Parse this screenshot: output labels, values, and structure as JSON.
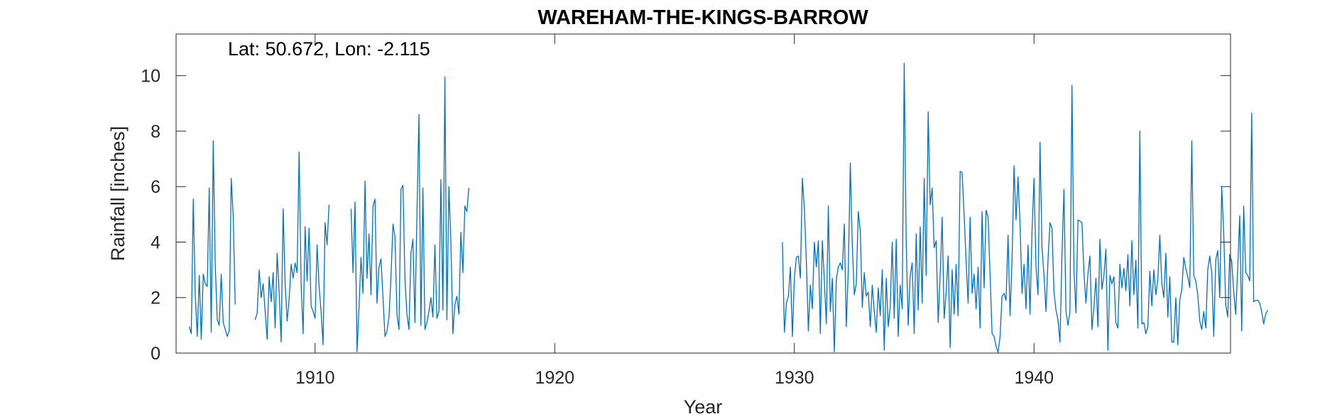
{
  "chart_data": {
    "type": "line",
    "title": "WAREHAM-THE-KINGS-BARROW",
    "annotation": "Lat: 50.672, Lon: -2.115",
    "xlabel": "Year",
    "ylabel": "Rainfall [inches]",
    "xlim": [
      1904.2,
      1948.2
    ],
    "ylim": [
      0,
      11.5
    ],
    "x_ticks": [
      1910,
      1920,
      1930,
      1940
    ],
    "y_ticks": [
      0,
      2,
      4,
      6,
      8,
      10
    ],
    "grid": false,
    "line_color": "#0072BD",
    "series": [
      {
        "segments": [
          {
            "start_year": 1904.75,
            "values": [
              0.95,
              0.7,
              5.55,
              2.1,
              0.6,
              2.8,
              0.5,
              2.85,
              2.5,
              2.4,
              5.95,
              0.75,
              7.65,
              3.2,
              1.2,
              1.0,
              2.85,
              1.1,
              0.85,
              0.6,
              0.8,
              6.3,
              4.95,
              1.75
            ]
          },
          {
            "start_year": 1907.5,
            "values": [
              1.2,
              1.45,
              3.0,
              2.0,
              2.5,
              1.5,
              0.5,
              2.75,
              1.85,
              2.9,
              0.9,
              3.6,
              2.2,
              0.4,
              5.2,
              2.5,
              1.15,
              1.95,
              3.2,
              2.7,
              3.25,
              2.9,
              7.25,
              2.5,
              0.7,
              4.55,
              2.6,
              4.5,
              1.7,
              1.5,
              1.25,
              3.9,
              2.4,
              1.5,
              0.3,
              4.7,
              3.9,
              5.35
            ]
          },
          {
            "start_year": 1911.5,
            "values": [
              5.2,
              2.9,
              5.45,
              0.05,
              1.65,
              3.45,
              2.15,
              6.2,
              2.7,
              4.3,
              2.1,
              5.3,
              5.55,
              1.8,
              3.1,
              3.4,
              2.0,
              0.6,
              0.8,
              1.3,
              2.75,
              4.65,
              4.2,
              1.4,
              0.85,
              5.9,
              6.05,
              2.65,
              1.4,
              0.85,
              3.6,
              4.1,
              1.1,
              5.0,
              8.6,
              1.0,
              5.95,
              0.85,
              1.1,
              1.5,
              2.0,
              1.3,
              3.9,
              1.25,
              1.5,
              6.25,
              1.55,
              9.95,
              1.2,
              6.0,
              4.0,
              0.7,
              1.75,
              2.05,
              1.4,
              4.35,
              2.9,
              5.3,
              5.1,
              5.95
            ]
          },
          {
            "start_year": 1929.5,
            "values": [
              4.0,
              0.75,
              1.8,
              2.05,
              3.1,
              0.6,
              2.7,
              3.45,
              3.5,
              2.7,
              6.3,
              5.2,
              3.3,
              0.8,
              2.45,
              1.6,
              4.0,
              3.1,
              4.05,
              0.7,
              4.05,
              2.6,
              1.05,
              5.3,
              1.5,
              2.7,
              0.05,
              2.65,
              3.1,
              3.25,
              3.0,
              4.65,
              0.95,
              3.0,
              6.85,
              3.9,
              2.1,
              2.5,
              5.1,
              4.4,
              1.65,
              2.9,
              2.05,
              2.2,
              0.95,
              2.45,
              1.5,
              0.75,
              2.35,
              1.35,
              3.0,
              0.1,
              2.7,
              0.95,
              1.65,
              4.0,
              1.25,
              4.1,
              0.6,
              2.45,
              1.6,
              10.45,
              4.0,
              1.0,
              2.8,
              3.25,
              0.7,
              4.3,
              1.55,
              4.55,
              1.8,
              6.3,
              2.8,
              8.7,
              5.35,
              5.95,
              3.8,
              4.05,
              1.1,
              2.8,
              4.9,
              1.25,
              2.2,
              3.5,
              0.2,
              3.0,
              1.4,
              3.2,
              1.35,
              6.55,
              6.5,
              5.0,
              3.3,
              1.8,
              4.9,
              2.15,
              2.85,
              1.6,
              3.1,
              0.9,
              5.1,
              2.35,
              5.15,
              4.9,
              2.8,
              0.7,
              0.6,
              0.25,
              0.02,
              0.6,
              2.05,
              2.15,
              1.9,
              4.25,
              1.35,
              3.35,
              6.75,
              4.8,
              6.35,
              4.65,
              2.15,
              3.2,
              1.6,
              3.9,
              1.4,
              4.4,
              6.3,
              3.1,
              2.1,
              7.6,
              3.8,
              2.8,
              1.5,
              3.35,
              4.7,
              4.5,
              2.2,
              1.55,
              1.2,
              0.4,
              3.55,
              5.9,
              1.5,
              1.0,
              1.5,
              9.65,
              3.0,
              1.45,
              4.8,
              4.75,
              4.7,
              2.9,
              1.8,
              2.85,
              3.5,
              0.85,
              1.65,
              2.7,
              0.95,
              4.1,
              2.3,
              2.8,
              3.75,
              0.1,
              2.8,
              2.5,
              2.75,
              1.1,
              0.9,
              3.2,
              2.35,
              3.05,
              2.25,
              3.55,
              1.7,
              4.05,
              2.1,
              3.35,
              0.9,
              8.0,
              1.05,
              1.1,
              0.7,
              0.95,
              2.95,
              1.7,
              3.0,
              2.1,
              2.65,
              4.25,
              2.5,
              2.0,
              3.6,
              1.3,
              2.75,
              0.4,
              0.4,
              2.0,
              0.3,
              1.9,
              2.3,
              3.45,
              3.05,
              2.75,
              2.35,
              7.65,
              2.8,
              2.6,
              2.1,
              1.15,
              0.85,
              1.5,
              0.9,
              3.0,
              3.5,
              2.9,
              0.6,
              3.35,
              3.7,
              2.0,
              6.0,
              4.3,
              1.75,
              1.3,
              3.55,
              3.3,
              2.2,
              1.4,
              3.05,
              4.95,
              0.8,
              5.3,
              2.9,
              2.8,
              2.6,
              8.65,
              1.85,
              1.9,
              1.9,
              1.8,
              1.5,
              1.05,
              1.4,
              1.55
            ]
          }
        ]
      }
    ]
  }
}
